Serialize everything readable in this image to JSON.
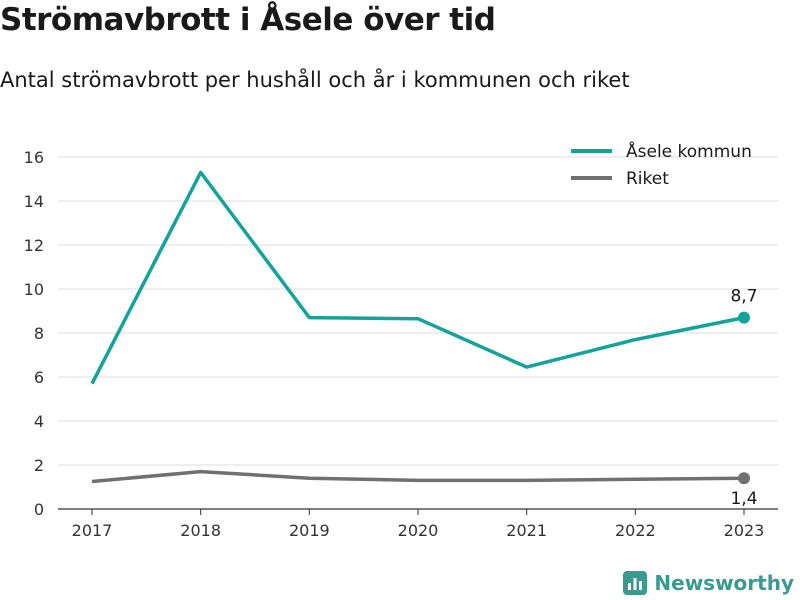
{
  "title": "Strömavbrott i Åsele över tid",
  "subtitle": "Antal strömavbrott per hushåll och år i kommunen och riket",
  "brand": "Newsworthy",
  "chart_data": {
    "type": "line",
    "categories": [
      "2017",
      "2018",
      "2019",
      "2020",
      "2021",
      "2022",
      "2023"
    ],
    "y_ticks": [
      "0",
      "2",
      "4",
      "6",
      "8",
      "10",
      "12",
      "14",
      "16"
    ],
    "ylim": [
      0,
      16
    ],
    "grid": true,
    "legend_position": "top-right",
    "series": [
      {
        "name": "Åsele kommun",
        "color": "#14a39a",
        "values": [
          5.7,
          15.3,
          8.7,
          8.65,
          6.45,
          7.7,
          8.7
        ],
        "end_label": "8,7"
      },
      {
        "name": "Riket",
        "color": "#707070",
        "values": [
          1.25,
          1.7,
          1.4,
          1.3,
          1.3,
          1.35,
          1.4
        ],
        "end_label": "1,4"
      }
    ]
  }
}
